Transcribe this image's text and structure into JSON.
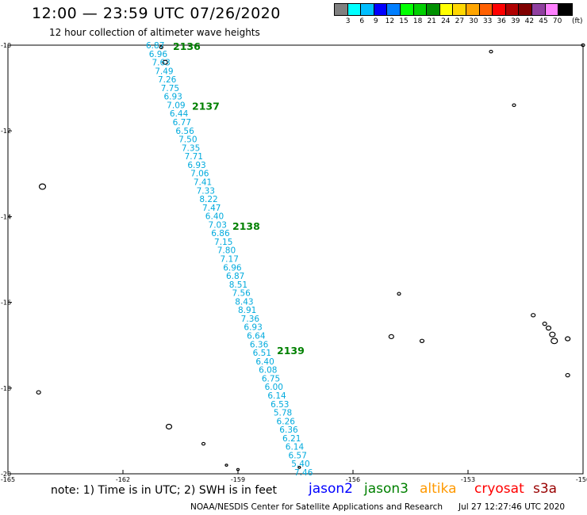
{
  "header": {
    "title": "12:00 — 23:59 UTC 07/26/2020",
    "subtitle": "12 hour collection of altimeter wave heights"
  },
  "colorbar": {
    "colors": [
      "#808080",
      "#00ffff",
      "#00bfff",
      "#0000ff",
      "#007fff",
      "#00ff00",
      "#00d000",
      "#009000",
      "#ffff00",
      "#ffd700",
      "#ffa500",
      "#ff6000",
      "#ff0000",
      "#b00000",
      "#800000",
      "#9040a0",
      "#ff80ff",
      "#000000"
    ],
    "labels": [
      "3",
      "6",
      "9",
      "12",
      "15",
      "18",
      "21",
      "24",
      "27",
      "30",
      "33",
      "36",
      "39",
      "42",
      "45",
      "70"
    ],
    "unit": "(ft)"
  },
  "map": {
    "lat_labels": [
      "-10",
      "-12",
      "-14",
      "-16",
      "-18",
      "-20"
    ],
    "lon_labels": [
      "-165",
      "-162",
      "-159",
      "-156",
      "-153",
      "-150"
    ],
    "track_color": "#00aadd",
    "pass_color": "#008000",
    "passes": [
      {
        "label": "2136",
        "lat": -10.0
      },
      {
        "label": "2137",
        "lat": -11.4
      },
      {
        "label": "2138",
        "lat": -14.2
      },
      {
        "label": "2139",
        "lat": -17.1
      }
    ],
    "swh": [
      "6.87",
      "6.96",
      "7.63",
      "7.49",
      "7.26",
      "7.75",
      "6.93",
      "7.09",
      "6.44",
      "6.77",
      "6.56",
      "7.50",
      "7.35",
      "7.71",
      "6.93",
      "7.06",
      "7.41",
      "7.33",
      "8.22",
      "7.47",
      "6.40",
      "7.03",
      "6.86",
      "7.15",
      "7.80",
      "7.17",
      "6.96",
      "6.87",
      "8.51",
      "7.56",
      "8.43",
      "8.91",
      "7.36",
      "6.93",
      "6.64",
      "6.36",
      "6.51",
      "6.40",
      "6.08",
      "6.75",
      "6.00",
      "6.14",
      "6.53",
      "5.78",
      "6.26",
      "6.36",
      "6.21",
      "6.14",
      "6.57",
      "5.40",
      "7.46"
    ],
    "island_color": "#000000"
  },
  "note": "note: 1) Time is in UTC; 2) SWH is in feet",
  "satellites": [
    {
      "name": "jason2",
      "color": "#0000ff"
    },
    {
      "name": "jason3",
      "color": "#008000"
    },
    {
      "name": "altika",
      "color": "#ff9900"
    },
    {
      "name": "cryosat",
      "color": "#ff0000"
    },
    {
      "name": "s3a",
      "color": "#990000"
    }
  ],
  "footer": {
    "credit": "NOAA/NESDIS Center for Satellite Applications and Research",
    "timestamp": "Jul 27 12:27:46 UTC 2020"
  }
}
